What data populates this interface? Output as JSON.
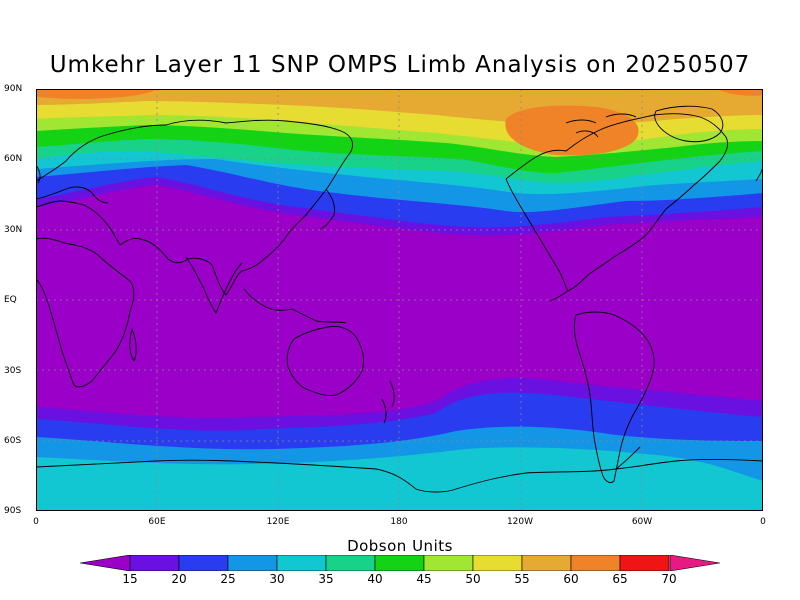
{
  "title": "Umkehr Layer 11 SNP OMPS Limb Analysis on 20250507",
  "lat_labels": [
    "90N",
    "60N",
    "30N",
    "EQ",
    "30S",
    "60S",
    "90S"
  ],
  "lon_labels": [
    "0",
    "60E",
    "120E",
    "180",
    "120W",
    "60W",
    "0"
  ],
  "colorbar": {
    "title": "Dobson Units",
    "labels": [
      "15",
      "20",
      "25",
      "30",
      "35",
      "40",
      "45",
      "50",
      "55",
      "60",
      "65",
      "70"
    ],
    "colors": [
      "#9b00c8",
      "#6a10e0",
      "#2a3cf0",
      "#1496e6",
      "#12c6d2",
      "#18d28a",
      "#14d214",
      "#a0e632",
      "#e6dc32",
      "#e6aa32",
      "#f08228",
      "#f01414"
    ],
    "low_color": "#c800c8",
    "high_color": "#e61a82"
  }
}
